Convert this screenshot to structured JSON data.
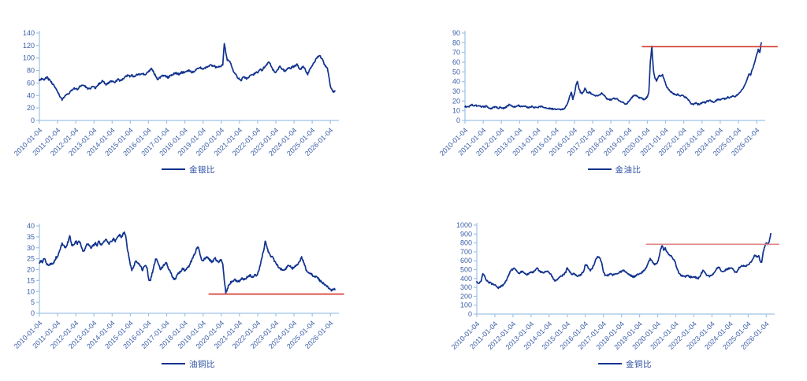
{
  "colors": {
    "series": "#10328E",
    "axis": "#9DC3E6",
    "tick_text": "#3C5FA8",
    "legend_text": "#2B4EA2",
    "ref_red": "#D2342A",
    "ref_salmon": "#E08585"
  },
  "chart_data": [
    {
      "id": "gold-silver-ratio",
      "type": "line",
      "legend": "金银比",
      "title": "",
      "xlabel": "",
      "ylabel": "",
      "ylim": [
        0,
        140
      ],
      "ytick_step": 20,
      "y_tick_labels": [
        "0",
        "20",
        "40",
        "60",
        "80",
        "100",
        "120",
        "140"
      ],
      "x_tick_labels": [
        "2010-01-04",
        "2011-01-04",
        "2012-01-04",
        "2013-01-04",
        "2014-01-04",
        "2015-01-04",
        "2016-01-04",
        "2017-01-04",
        "2018-01-04",
        "2019-01-04",
        "2020-01-04",
        "2021-01-04",
        "2022-01-04",
        "2023-01-04",
        "2024-01-04",
        "2025-01-04",
        "2026-01-04"
      ],
      "x_start_year": 2010,
      "sampling": "monthly",
      "noise_amp": 1.4,
      "ref_line": null,
      "monthly_values": [
        64,
        66,
        68,
        64,
        67,
        69,
        66,
        64,
        61,
        58,
        54,
        50,
        46,
        42,
        37,
        33,
        36,
        40,
        42,
        43,
        45,
        48,
        50,
        51,
        51,
        50,
        52,
        55,
        56,
        57,
        55,
        53,
        51,
        51,
        52,
        54,
        54,
        52,
        55,
        58,
        60,
        62,
        63,
        60,
        58,
        59,
        60,
        62,
        63,
        61,
        62,
        64,
        66,
        64,
        65,
        66,
        68,
        70,
        72,
        71,
        71,
        72,
        70,
        71,
        73,
        74,
        75,
        73,
        75,
        74,
        72,
        76,
        78,
        81,
        83,
        79,
        74,
        70,
        66,
        68,
        69,
        71,
        72,
        71,
        70,
        69,
        71,
        72,
        74,
        75,
        76,
        75,
        74,
        76,
        77,
        77,
        77,
        79,
        80,
        80,
        78,
        77,
        79,
        81,
        83,
        84,
        85,
        83,
        82,
        84,
        85,
        86,
        88,
        90,
        87,
        88,
        86,
        84,
        85,
        86,
        87,
        90,
        124,
        108,
        97,
        95,
        93,
        85,
        78,
        76,
        72,
        68,
        66,
        64,
        68,
        70,
        68,
        67,
        69,
        72,
        74,
        73,
        75,
        77,
        76,
        79,
        82,
        79,
        84,
        88,
        90,
        94,
        92,
        87,
        82,
        78,
        77,
        80,
        84,
        87,
        83,
        81,
        79,
        81,
        83,
        85,
        84,
        86,
        86,
        88,
        90,
        85,
        82,
        84,
        86,
        83,
        78,
        74,
        80,
        84,
        88,
        92,
        96,
        100,
        103,
        105,
        100,
        96,
        90,
        86,
        83,
        70,
        55,
        48,
        46,
        47
      ]
    },
    {
      "id": "gold-oil-ratio",
      "type": "line",
      "legend": "金油比",
      "title": "",
      "xlabel": "",
      "ylabel": "",
      "ylim": [
        0,
        90
      ],
      "ytick_step": 10,
      "y_tick_labels": [
        "0",
        "10",
        "20",
        "30",
        "40",
        "50",
        "60",
        "70",
        "80",
        "90"
      ],
      "x_tick_labels": [
        "2010-01-04",
        "2011-01-04",
        "2012-01-04",
        "2013-01-04",
        "2014-01-04",
        "2015-01-04",
        "2016-01-04",
        "2017-01-04",
        "2018-01-04",
        "2019-01-04",
        "2020-01-04",
        "2021-01-04",
        "2022-01-04",
        "2023-01-04",
        "2024-01-04",
        "2025-01-04",
        "2026-01-04"
      ],
      "x_start_year": 2010,
      "sampling": "monthly",
      "noise_amp": 0.7,
      "ref_line": {
        "value": 76,
        "x_from": 2019.7,
        "x_to": 2027.15,
        "color": "#D2342A"
      },
      "monthly_values": [
        14,
        14.5,
        14.2,
        14.6,
        15.8,
        16,
        15.4,
        15.6,
        15,
        14.6,
        14.4,
        14.2,
        14.6,
        14,
        14.8,
        13.6,
        13,
        12.6,
        12.8,
        13.8,
        14.4,
        13.2,
        12.8,
        13.4,
        13,
        12.6,
        12.8,
        13.6,
        15,
        16.5,
        15.4,
        14.4,
        14,
        14.4,
        15,
        15.4,
        15,
        14.6,
        14.2,
        14.8,
        14,
        13.6,
        13,
        13.8,
        14.2,
        13.8,
        13.4,
        13.2,
        13.4,
        14,
        14.2,
        13.8,
        13.4,
        13.2,
        12.8,
        12.6,
        12.2,
        11.8,
        11.6,
        12,
        11.6,
        11.4,
        11.8,
        11.4,
        11.6,
        12,
        13.5,
        16,
        20,
        25,
        29,
        22,
        27,
        36,
        40,
        33,
        29,
        28,
        29,
        33,
        30,
        28,
        29,
        28,
        27,
        26,
        25,
        26,
        25.5,
        26.5,
        28,
        27,
        25,
        23,
        22,
        21.5,
        21,
        22,
        22.5,
        23,
        22,
        21,
        20,
        19,
        18.5,
        17.5,
        17,
        18,
        20,
        22,
        24,
        25.5,
        26,
        25,
        24,
        23,
        23.5,
        22.5,
        21.5,
        23,
        24,
        30,
        60,
        76,
        52,
        44,
        41,
        44,
        47,
        45,
        47,
        43,
        38,
        34,
        32,
        30,
        29,
        28,
        27,
        26,
        27,
        26,
        25,
        26,
        25,
        24,
        23,
        21,
        19,
        17,
        16.5,
        17.5,
        18,
        17,
        16.5,
        17.5,
        18,
        19,
        18.5,
        19.5,
        20,
        21,
        20,
        19.5,
        19,
        20,
        21,
        21.5,
        21,
        22,
        22.5,
        22,
        23,
        24,
        23.5,
        24,
        25,
        24.5,
        25,
        26,
        27,
        29,
        31,
        33,
        36,
        40,
        44,
        48,
        47,
        52,
        57,
        62,
        68,
        73,
        70,
        80
      ]
    },
    {
      "id": "oil-copper-ratio",
      "type": "line",
      "legend": "油铜比",
      "title": "",
      "xlabel": "",
      "ylabel": "",
      "ylim": [
        0,
        40
      ],
      "ytick_step": 5,
      "y_tick_labels": [
        "0",
        "5",
        "10",
        "15",
        "20",
        "25",
        "30",
        "35",
        "40"
      ],
      "x_tick_labels": [
        "2010-01-04",
        "2011-01-04",
        "2012-01-04",
        "2013-01-04",
        "2014-01-04",
        "2015-01-04",
        "2016-01-04",
        "2017-01-04",
        "2018-01-04",
        "2019-01-04",
        "2020-01-04",
        "2021-01-04",
        "2022-01-04",
        "2023-01-04",
        "2024-01-04",
        "2025-01-04",
        "2026-01-04"
      ],
      "x_start_year": 2010,
      "sampling": "monthly",
      "noise_amp": 0.5,
      "ref_line": {
        "value": 8.8,
        "x_from": 2019.3,
        "x_to": 2026.75,
        "color": "#D2342A"
      },
      "monthly_values": [
        23,
        24,
        23.5,
        25,
        24,
        22.5,
        22,
        23,
        22.5,
        23,
        24,
        25.5,
        26,
        28,
        30,
        32,
        31,
        30,
        31,
        33,
        36,
        32,
        31,
        32,
        33,
        32,
        33,
        32,
        30,
        28,
        29,
        31,
        32,
        31,
        30,
        31,
        31,
        32,
        31,
        33,
        32,
        31,
        32,
        33,
        34,
        33,
        32,
        33,
        33,
        34,
        33,
        34,
        35,
        36,
        35,
        36,
        37,
        35,
        30,
        26,
        22,
        20,
        21,
        23,
        24,
        23,
        22,
        21,
        20,
        21,
        22,
        21,
        16,
        14.5,
        17,
        20,
        23,
        25,
        24,
        22,
        20,
        21,
        22,
        23,
        23,
        21,
        19.5,
        18,
        16.5,
        15.5,
        16,
        17.5,
        18.5,
        19,
        20,
        20.5,
        19.5,
        20,
        21,
        22,
        23.5,
        25,
        26.5,
        28,
        30,
        30.5,
        27,
        24,
        24,
        25,
        25.5,
        26,
        25,
        24,
        23.5,
        24.5,
        25.5,
        24,
        23.5,
        24,
        24.5,
        23,
        15,
        9.5,
        11,
        13,
        14,
        14.5,
        15,
        15.5,
        15,
        14.5,
        15,
        15.5,
        16,
        15.5,
        16,
        16.5,
        17,
        17.5,
        17,
        16.5,
        17.5,
        17,
        18,
        20,
        23,
        26,
        29,
        33,
        31,
        28,
        27,
        26,
        25.5,
        24,
        23,
        22,
        21,
        20.5,
        20,
        19.5,
        20,
        21,
        21.5,
        22,
        21,
        20.5,
        21,
        21.5,
        22,
        23,
        24,
        25.5,
        24,
        22,
        20,
        19,
        18.5,
        18,
        17.5,
        17,
        16.5,
        17,
        16,
        15,
        14.5,
        14,
        13.5,
        12.5,
        12,
        11.5,
        11,
        10.5,
        11.2,
        10.8
      ]
    },
    {
      "id": "gold-copper-ratio",
      "type": "line",
      "legend": "金铜比",
      "title": "",
      "xlabel": "",
      "ylabel": "",
      "ylim": [
        0,
        1000
      ],
      "ytick_step": 100,
      "y_tick_labels": [
        "0",
        "100",
        "200",
        "300",
        "400",
        "500",
        "600",
        "700",
        "800",
        "900",
        "1000"
      ],
      "x_tick_labels": [
        "2010-01-04",
        "2011-01-04",
        "2012-01-04",
        "2013-01-04",
        "2014-01-04",
        "2015-01-04",
        "2016-01-04",
        "2017-01-04",
        "2018-01-04",
        "2019-01-04",
        "2020-01-04",
        "2021-01-04",
        "2022-01-04",
        "2023-01-04",
        "2024-01-04",
        "2025-01-04",
        "2026-01-04"
      ],
      "x_start_year": 2010,
      "sampling": "monthly",
      "noise_amp": 9,
      "ref_line": {
        "value": 785,
        "x_from": 2019.35,
        "x_to": 2026.72,
        "color": "#E08585"
      },
      "monthly_values": [
        365,
        345,
        355,
        375,
        450,
        430,
        395,
        370,
        355,
        350,
        340,
        335,
        330,
        310,
        295,
        300,
        310,
        320,
        340,
        360,
        390,
        430,
        470,
        495,
        505,
        515,
        490,
        470,
        460,
        470,
        480,
        472,
        455,
        445,
        448,
        462,
        466,
        470,
        480,
        500,
        513,
        495,
        480,
        470,
        468,
        475,
        482,
        478,
        470,
        450,
        420,
        395,
        375,
        385,
        400,
        415,
        425,
        435,
        450,
        470,
        520,
        495,
        465,
        450,
        455,
        445,
        435,
        425,
        435,
        445,
        460,
        490,
        555,
        545,
        510,
        490,
        500,
        530,
        570,
        610,
        640,
        645,
        620,
        560,
        470,
        440,
        430,
        436,
        446,
        450,
        440,
        446,
        456,
        460,
        466,
        470,
        480,
        495,
        485,
        470,
        455,
        445,
        435,
        425,
        420,
        426,
        436,
        450,
        455,
        460,
        475,
        490,
        510,
        550,
        590,
        620,
        600,
        570,
        560,
        565,
        590,
        640,
        730,
        770,
        720,
        740,
        700,
        680,
        660,
        650,
        630,
        610,
        560,
        500,
        460,
        440,
        430,
        425,
        420,
        426,
        430,
        420,
        415,
        420,
        420,
        415,
        405,
        400,
        420,
        460,
        490,
        470,
        450,
        435,
        425,
        430,
        440,
        450,
        470,
        500,
        530,
        520,
        480,
        475,
        485,
        495,
        505,
        510,
        515,
        520,
        500,
        480,
        470,
        490,
        520,
        540,
        545,
        540,
        535,
        545,
        555,
        570,
        590,
        620,
        650,
        660,
        640,
        655,
        600,
        580,
        700,
        760,
        800,
        780,
        820,
        905
      ]
    }
  ]
}
